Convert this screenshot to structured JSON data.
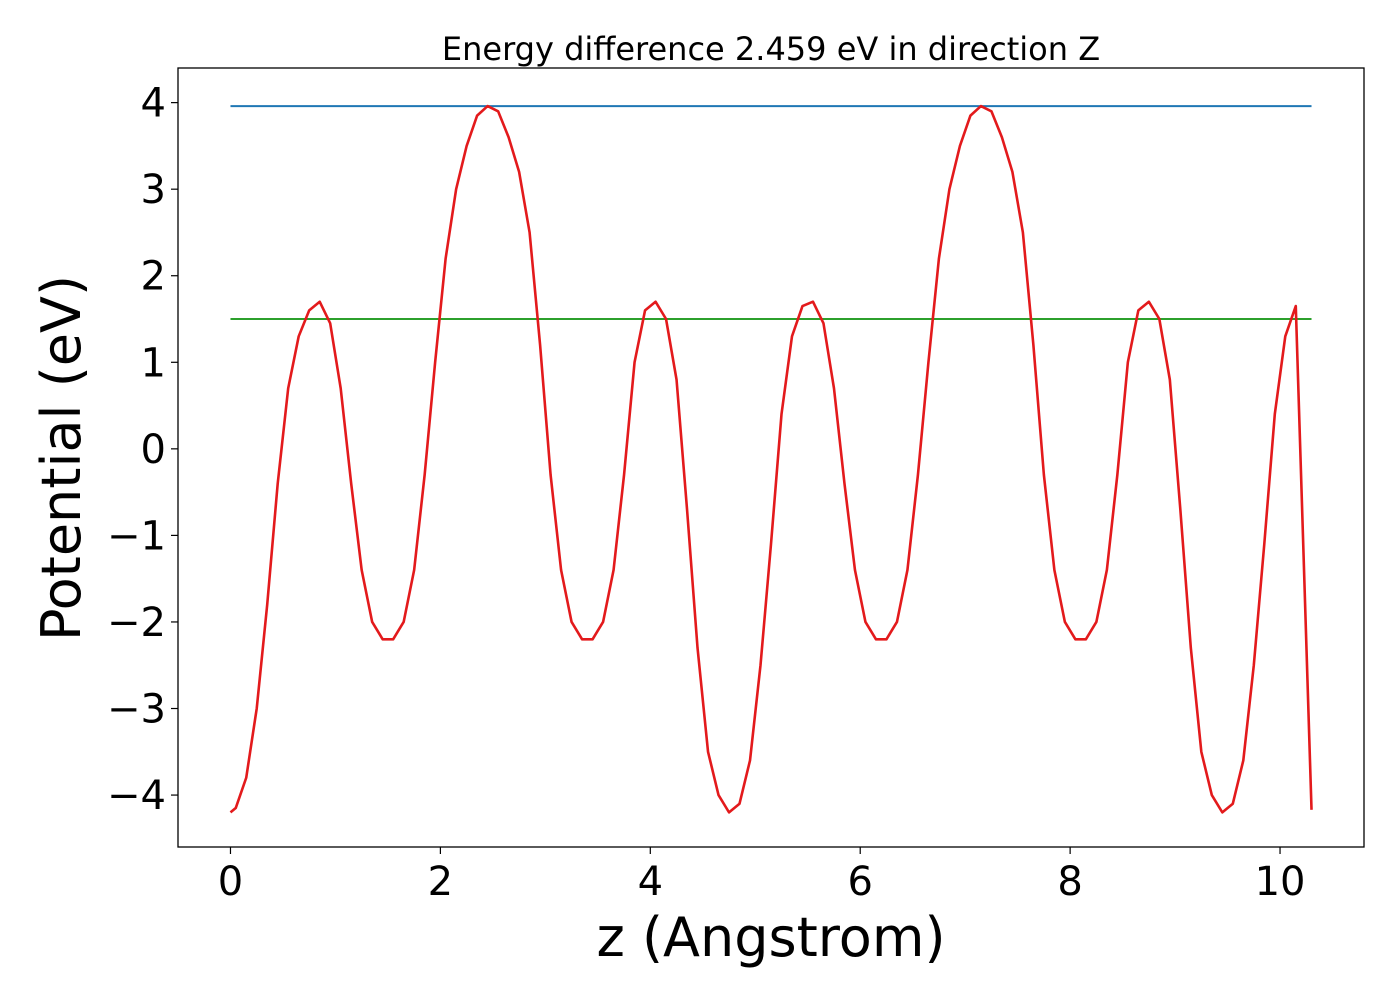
{
  "chart_data": {
    "type": "line",
    "title": "Energy difference 2.459 eV in direction Z",
    "xlabel": "z (Angstrom)",
    "ylabel": "Potential (eV)",
    "xlim": [
      -0.5,
      10.8
    ],
    "ylim": [
      -4.6,
      4.4
    ],
    "xticks": [
      0,
      2,
      4,
      6,
      8,
      10
    ],
    "xtick_labels": [
      "0",
      "2",
      "4",
      "6",
      "8",
      "10"
    ],
    "yticks": [
      -4,
      -3,
      -2,
      -1,
      0,
      1,
      2,
      3,
      4
    ],
    "ytick_labels": [
      "−4",
      "−3",
      "−2",
      "−1",
      "0",
      "1",
      "2",
      "3",
      "4"
    ],
    "grid": false,
    "series": [
      {
        "color": "#1f77b4",
        "x": [
          0,
          10.3
        ],
        "y": [
          3.96,
          3.96
        ]
      },
      {
        "color": "#2ca02c",
        "x": [
          0,
          10.3
        ],
        "y": [
          1.5,
          1.5
        ]
      },
      {
        "color": "#e31a1c",
        "x": [
          0.0,
          0.05,
          0.15,
          0.25,
          0.35,
          0.45,
          0.55,
          0.65,
          0.75,
          0.85,
          0.95,
          1.05,
          1.15,
          1.25,
          1.35,
          1.45,
          1.55,
          1.65,
          1.75,
          1.85,
          1.95,
          2.05,
          2.15,
          2.25,
          2.35,
          2.45,
          2.55,
          2.65,
          2.75,
          2.85,
          2.95,
          3.05,
          3.15,
          3.25,
          3.35,
          3.45,
          3.55,
          3.65,
          3.75,
          3.85,
          3.95,
          4.05,
          4.15,
          4.25,
          4.35,
          4.45,
          4.55,
          4.65,
          4.75,
          4.85,
          4.95,
          5.05,
          5.15,
          5.25,
          5.35,
          5.45,
          5.55,
          5.65,
          5.75,
          5.85,
          5.95,
          6.05,
          6.15,
          6.25,
          6.35,
          6.45,
          6.55,
          6.65,
          6.75,
          6.85,
          6.95,
          7.05,
          7.15,
          7.25,
          7.35,
          7.45,
          7.55,
          7.65,
          7.75,
          7.85,
          7.95,
          8.05,
          8.15,
          8.25,
          8.35,
          8.45,
          8.55,
          8.65,
          8.75,
          8.85,
          8.95,
          9.05,
          9.15,
          9.25,
          9.35,
          9.45,
          9.55,
          9.65,
          9.75,
          9.85,
          9.95,
          10.05,
          10.15,
          10.3
        ],
        "y": [
          -4.2,
          -4.15,
          -3.8,
          -3.0,
          -1.8,
          -0.4,
          0.7,
          1.3,
          1.6,
          1.7,
          1.45,
          0.7,
          -0.4,
          -1.4,
          -2.0,
          -2.2,
          -2.2,
          -2.0,
          -1.4,
          -0.3,
          1.0,
          2.2,
          3.0,
          3.5,
          3.85,
          3.96,
          3.9,
          3.6,
          3.2,
          2.5,
          1.2,
          -0.3,
          -1.4,
          -2.0,
          -2.2,
          -2.2,
          -2.0,
          -1.4,
          -0.3,
          1.0,
          1.6,
          1.7,
          1.5,
          0.8,
          -0.7,
          -2.3,
          -3.5,
          -4.0,
          -4.2,
          -4.1,
          -3.6,
          -2.5,
          -1.1,
          0.4,
          1.3,
          1.65,
          1.7,
          1.45,
          0.7,
          -0.4,
          -1.4,
          -2.0,
          -2.2,
          -2.2,
          -2.0,
          -1.4,
          -0.3,
          1.0,
          2.2,
          3.0,
          3.5,
          3.85,
          3.96,
          3.9,
          3.6,
          3.2,
          2.5,
          1.2,
          -0.3,
          -1.4,
          -2.0,
          -2.2,
          -2.2,
          -2.0,
          -1.4,
          -0.3,
          1.0,
          1.6,
          1.7,
          1.5,
          0.8,
          -0.7,
          -2.3,
          -3.5,
          -4.0,
          -4.2,
          -4.1,
          -3.6,
          -2.5,
          -1.1,
          0.4,
          1.3,
          1.65,
          -4.17
        ]
      }
    ]
  }
}
